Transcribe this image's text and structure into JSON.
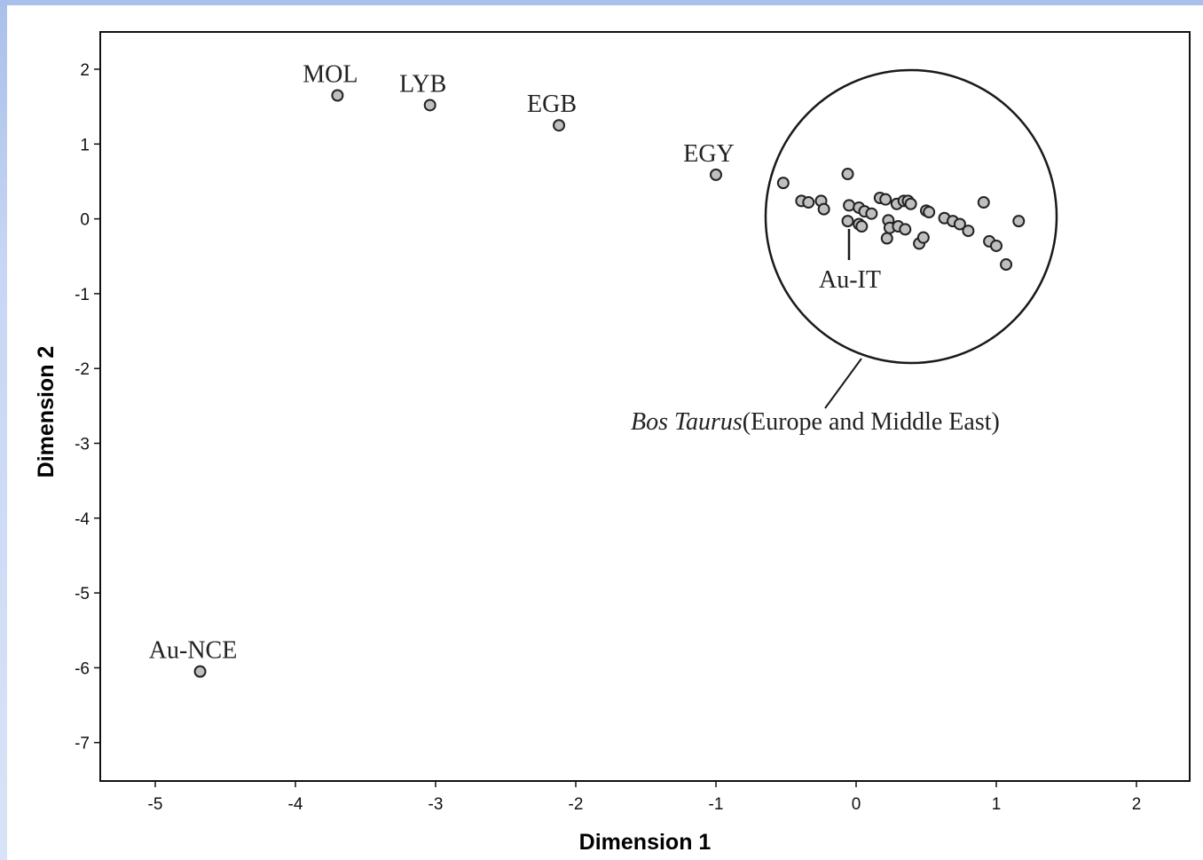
{
  "chart_data": {
    "type": "scatter",
    "xlabel": "Dimension 1",
    "ylabel": "Dimension 2",
    "xlim": [
      -5.4,
      2.4
    ],
    "ylim": [
      -7.5,
      2.5
    ],
    "xticks": [
      -5,
      -4,
      -3,
      -2,
      -1,
      0,
      1,
      2
    ],
    "yticks": [
      2,
      1,
      0,
      -1,
      -2,
      -3,
      -4,
      -5,
      -6,
      -7
    ],
    "grid": false,
    "marker_color": "#bfbfbf",
    "labeled_points": [
      {
        "label": "MOL",
        "x": -3.7,
        "y": 1.65
      },
      {
        "label": "LYB",
        "x": -3.04,
        "y": 1.52
      },
      {
        "label": "EGB",
        "x": -2.12,
        "y": 1.25
      },
      {
        "label": "EGY",
        "x": -1.0,
        "y": 0.59
      },
      {
        "label": "Au-NCE",
        "x": -4.68,
        "y": -6.05
      }
    ],
    "cluster_points": [
      {
        "x": -0.52,
        "y": 0.48
      },
      {
        "x": -0.06,
        "y": 0.6
      },
      {
        "x": -0.39,
        "y": 0.24
      },
      {
        "x": -0.34,
        "y": 0.22
      },
      {
        "x": -0.25,
        "y": 0.24
      },
      {
        "x": -0.23,
        "y": 0.13
      },
      {
        "x": -0.05,
        "y": 0.18
      },
      {
        "x": 0.02,
        "y": 0.15
      },
      {
        "x": 0.06,
        "y": 0.1
      },
      {
        "x": 0.11,
        "y": 0.07
      },
      {
        "x": 0.17,
        "y": 0.28
      },
      {
        "x": 0.21,
        "y": 0.26
      },
      {
        "x": 0.29,
        "y": 0.2
      },
      {
        "x": 0.34,
        "y": 0.24
      },
      {
        "x": 0.37,
        "y": 0.24
      },
      {
        "x": 0.39,
        "y": 0.2
      },
      {
        "x": 0.5,
        "y": 0.11
      },
      {
        "x": 0.52,
        "y": 0.09
      },
      {
        "x": 0.63,
        "y": 0.01
      },
      {
        "x": 0.69,
        "y": -0.03
      },
      {
        "x": 0.74,
        "y": -0.07
      },
      {
        "x": 0.8,
        "y": -0.16
      },
      {
        "x": 0.91,
        "y": 0.22
      },
      {
        "x": 0.95,
        "y": -0.3
      },
      {
        "x": 1.0,
        "y": -0.36
      },
      {
        "x": 1.07,
        "y": -0.61
      },
      {
        "x": 1.16,
        "y": -0.03
      },
      {
        "x": -0.06,
        "y": -0.03
      },
      {
        "x": 0.02,
        "y": -0.07
      },
      {
        "x": 0.04,
        "y": -0.1
      },
      {
        "x": 0.23,
        "y": -0.02
      },
      {
        "x": 0.24,
        "y": -0.12
      },
      {
        "x": 0.22,
        "y": -0.26
      },
      {
        "x": 0.3,
        "y": -0.1
      },
      {
        "x": 0.35,
        "y": -0.14
      },
      {
        "x": 0.45,
        "y": -0.33
      },
      {
        "x": 0.48,
        "y": -0.25
      }
    ],
    "annotations": {
      "cluster_label": "Au-IT",
      "group_label_italic": "Bos Taurus",
      "group_label_rest": "(Europe and Middle East)"
    }
  }
}
